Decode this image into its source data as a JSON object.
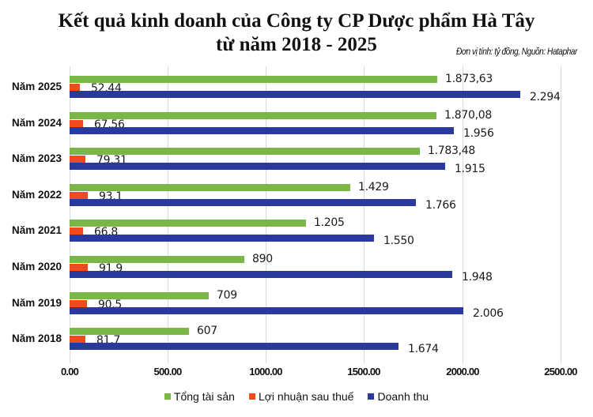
{
  "chart_data": {
    "type": "bar",
    "orientation": "horizontal",
    "title": "Kết quả kinh doanh của Công ty CP Dược phẩm Hà Tây",
    "subtitle": "từ năm 2018 - 2025",
    "note": "Đơn vị tính: tỷ đồng, Nguồn: Hataphar",
    "xlabel": "",
    "ylabel": "",
    "xlim": [
      0,
      2500
    ],
    "xticks": [
      "0.00",
      "500.00",
      "1000.00",
      "1500.00",
      "2000.00",
      "2500.00"
    ],
    "grid": true,
    "legend_position": "bottom",
    "categories": [
      "Năm 2025",
      "Năm 2024",
      "Năm 2023",
      "Năm 2022",
      "Năm 2021",
      "Năm 2020",
      "Năm 2019",
      "Năm 2018"
    ],
    "series": [
      {
        "name": "Tổng tài sản",
        "color": "#7ab648",
        "values": [
          1873.63,
          1870.08,
          1783.48,
          1429,
          1205,
          890,
          709,
          607
        ],
        "labels": [
          "1.873,63",
          "1.870,08",
          "1.783,48",
          "1.429",
          "1.205",
          "890",
          "709",
          "607"
        ]
      },
      {
        "name": "Lợi nhuận sau thuế",
        "color": "#f24a1f",
        "values": [
          52.44,
          67.56,
          79.31,
          93.1,
          66.8,
          91.9,
          90.5,
          81.7
        ],
        "labels": [
          "52,44",
          "67,56",
          "79,31",
          "93,1",
          "66,8",
          "91,9",
          "90,5",
          "81,7"
        ]
      },
      {
        "name": "Doanh thu",
        "color": "#2a3a9c",
        "values": [
          2294,
          1956,
          1915,
          1766,
          1550,
          1948,
          2006,
          1674
        ],
        "labels": [
          "2.294",
          "1.956",
          "1.915",
          "1.766",
          "1.550",
          "1.948",
          "2.006",
          "1.674"
        ]
      }
    ]
  },
  "header": {
    "title_line1": "Kết quả kinh doanh của Công ty CP Dược phẩm Hà Tây",
    "title_line2": "từ năm 2018 - 2025",
    "note": "Đơn vị tính: tỷ đồng, Nguồn: Hataphar"
  },
  "legend": {
    "items": [
      {
        "label": "Tổng tài sản",
        "color": "#7ab648"
      },
      {
        "label": "Lợi nhuận sau thuế",
        "color": "#f24a1f"
      },
      {
        "label": "Doanh thu",
        "color": "#2a3a9c"
      }
    ]
  }
}
